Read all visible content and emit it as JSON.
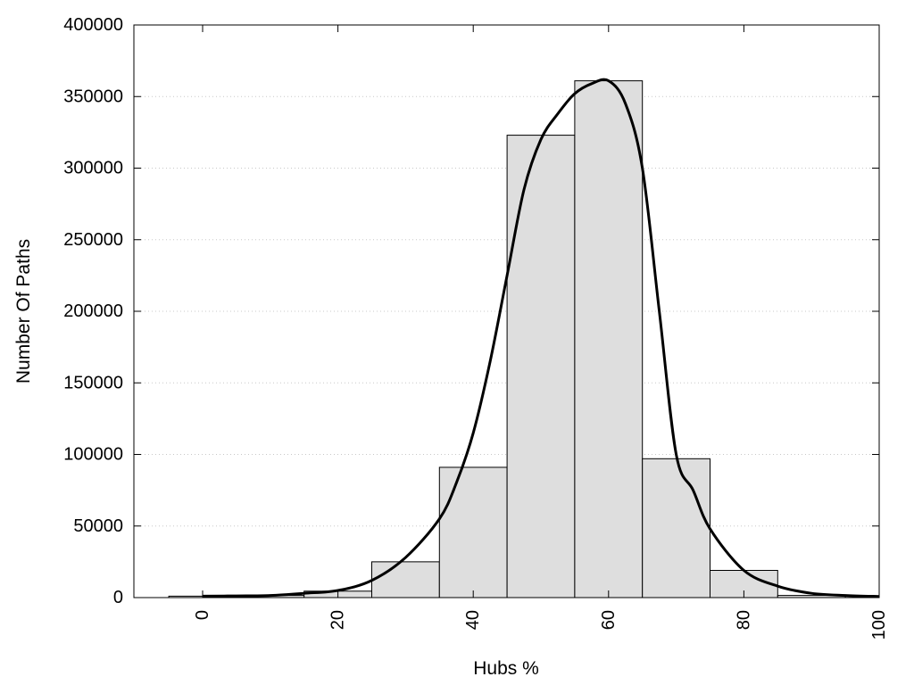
{
  "chart_data": {
    "type": "bar",
    "title": "",
    "xlabel": "Hubs %",
    "ylabel": "Number Of Paths",
    "xlim": [
      -10,
      100
    ],
    "ylim": [
      0,
      400000
    ],
    "x_ticks": [
      0,
      20,
      40,
      60,
      80,
      100
    ],
    "y_ticks": [
      0,
      50000,
      100000,
      150000,
      200000,
      250000,
      300000,
      350000,
      400000
    ],
    "grid": "horizontal-dotted",
    "bar_width": 10,
    "bar_color": "#dedede",
    "curve_color": "#000000",
    "bars": [
      {
        "x": 0,
        "value": 1000
      },
      {
        "x": 10,
        "value": 1500
      },
      {
        "x": 20,
        "value": 4500
      },
      {
        "x": 30,
        "value": 25000
      },
      {
        "x": 40,
        "value": 91000
      },
      {
        "x": 50,
        "value": 323000
      },
      {
        "x": 60,
        "value": 361000
      },
      {
        "x": 70,
        "value": 97000
      },
      {
        "x": 80,
        "value": 19000
      },
      {
        "x": 90,
        "value": 1500
      }
    ],
    "curve": {
      "x": [
        0,
        5,
        10,
        15,
        20,
        25,
        30,
        35,
        37.5,
        40,
        42.5,
        45,
        47.5,
        50,
        52.5,
        55,
        57.5,
        60,
        62.5,
        65,
        67.5,
        70,
        72.5,
        75,
        80,
        85,
        90,
        95,
        100
      ],
      "y": [
        1000,
        1200,
        1500,
        3000,
        5000,
        12000,
        28000,
        55000,
        80000,
        115000,
        165000,
        225000,
        285000,
        320000,
        338000,
        352000,
        359000,
        361000,
        345000,
        300000,
        200000,
        100000,
        75000,
        48000,
        19000,
        8000,
        3000,
        1500,
        800
      ]
    }
  }
}
